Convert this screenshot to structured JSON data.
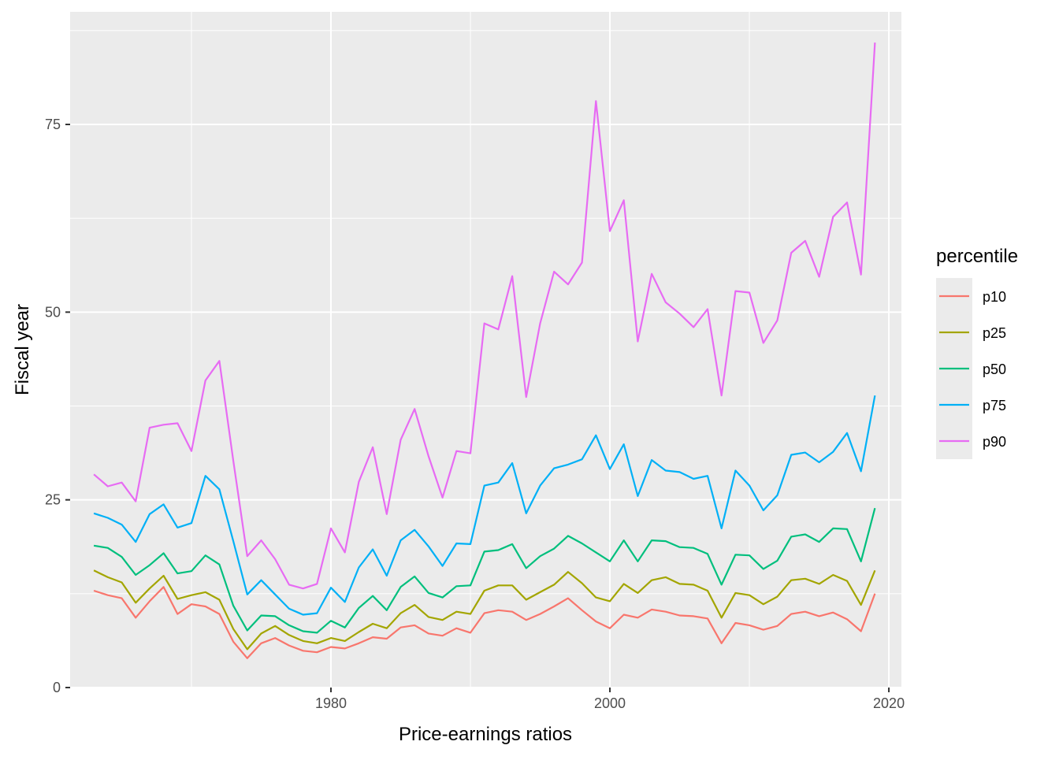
{
  "chart_data": {
    "type": "line",
    "xlabel": "Price-earnings ratios",
    "ylabel": "Fiscal year",
    "xlim": [
      1961.3,
      2020.9
    ],
    "ylim": [
      0,
      90
    ],
    "x_ticks": [
      1980,
      2000,
      2020
    ],
    "y_ticks": [
      0,
      25,
      50,
      75
    ],
    "x_tick_labels": [
      "1980",
      "2000",
      "2020"
    ],
    "y_tick_labels": [
      "0",
      "25",
      "50",
      "75"
    ],
    "grid": true,
    "legend": {
      "title": "percentile",
      "position": "right"
    },
    "x": [
      1963,
      1964,
      1965,
      1966,
      1967,
      1968,
      1969,
      1970,
      1971,
      1972,
      1973,
      1974,
      1975,
      1976,
      1977,
      1978,
      1979,
      1980,
      1981,
      1982,
      1983,
      1984,
      1985,
      1986,
      1987,
      1988,
      1989,
      1990,
      1991,
      1992,
      1993,
      1994,
      1995,
      1996,
      1997,
      1998,
      1999,
      2000,
      2001,
      2002,
      2003,
      2004,
      2005,
      2006,
      2007,
      2008,
      2009,
      2010,
      2011,
      2012,
      2013,
      2014,
      2015,
      2016,
      2017,
      2018,
      2019
    ],
    "series": [
      {
        "name": "p10",
        "color": "#F8766D",
        "values": [
          12.9,
          12.3,
          11.9,
          9.3,
          11.5,
          13.4,
          9.8,
          11.1,
          10.8,
          9.8,
          6.1,
          3.9,
          5.9,
          6.6,
          5.6,
          4.9,
          4.7,
          5.4,
          5.2,
          5.9,
          6.7,
          6.5,
          8.0,
          8.3,
          7.2,
          6.9,
          7.9,
          7.3,
          9.9,
          10.3,
          10.1,
          9.0,
          9.8,
          10.8,
          11.9,
          10.3,
          8.8,
          7.9,
          9.7,
          9.3,
          10.4,
          10.1,
          9.6,
          9.5,
          9.2,
          5.9,
          8.6,
          8.3,
          7.7,
          8.2,
          9.8,
          10.1,
          9.5,
          10.0,
          9.1,
          7.5,
          12.5
        ]
      },
      {
        "name": "p25",
        "color": "#A3A500",
        "values": [
          15.6,
          14.7,
          14.0,
          11.3,
          13.2,
          14.9,
          11.8,
          12.3,
          12.7,
          11.7,
          7.8,
          5.1,
          7.2,
          8.2,
          7.0,
          6.2,
          5.9,
          6.6,
          6.2,
          7.4,
          8.5,
          7.9,
          9.9,
          11.0,
          9.4,
          9.0,
          10.1,
          9.8,
          12.9,
          13.6,
          13.6,
          11.7,
          12.7,
          13.7,
          15.4,
          13.9,
          12.0,
          11.5,
          13.8,
          12.6,
          14.3,
          14.7,
          13.8,
          13.7,
          12.9,
          9.3,
          12.6,
          12.3,
          11.1,
          12.1,
          14.3,
          14.5,
          13.8,
          15.0,
          14.2,
          11.0,
          15.6
        ]
      },
      {
        "name": "p50",
        "color": "#00BF7D",
        "values": [
          18.9,
          18.6,
          17.4,
          15.0,
          16.3,
          17.9,
          15.2,
          15.5,
          17.6,
          16.4,
          10.9,
          7.6,
          9.6,
          9.5,
          8.3,
          7.5,
          7.3,
          8.9,
          8.0,
          10.6,
          12.2,
          10.3,
          13.4,
          14.8,
          12.6,
          12.0,
          13.5,
          13.6,
          18.1,
          18.3,
          19.1,
          15.9,
          17.5,
          18.5,
          20.2,
          19.2,
          18.0,
          16.8,
          19.6,
          16.8,
          19.6,
          19.5,
          18.7,
          18.6,
          17.8,
          13.7,
          17.7,
          17.6,
          15.8,
          16.9,
          20.1,
          20.4,
          19.4,
          21.2,
          21.1,
          16.8,
          23.9
        ]
      },
      {
        "name": "p75",
        "color": "#00B0F6",
        "values": [
          23.2,
          22.6,
          21.7,
          19.4,
          23.1,
          24.4,
          21.3,
          21.9,
          28.2,
          26.4,
          19.5,
          12.4,
          14.3,
          12.4,
          10.5,
          9.7,
          9.9,
          13.3,
          11.4,
          16.0,
          18.4,
          14.9,
          19.6,
          21.0,
          18.8,
          16.2,
          19.2,
          19.1,
          26.9,
          27.3,
          29.9,
          23.2,
          26.9,
          29.2,
          29.7,
          30.4,
          33.6,
          29.1,
          32.4,
          25.5,
          30.3,
          28.9,
          28.7,
          27.8,
          28.2,
          21.2,
          28.9,
          26.9,
          23.6,
          25.6,
          31.0,
          31.3,
          30.0,
          31.4,
          33.9,
          28.8,
          38.9
        ]
      },
      {
        "name": "p90",
        "color": "#E76BF3",
        "values": [
          28.4,
          26.8,
          27.3,
          24.8,
          34.6,
          35.0,
          35.2,
          31.5,
          40.9,
          43.5,
          30.2,
          17.5,
          19.6,
          17.1,
          13.7,
          13.2,
          13.8,
          21.2,
          18.0,
          27.4,
          32.0,
          23.1,
          33.0,
          37.1,
          30.8,
          25.3,
          31.5,
          31.2,
          48.5,
          47.7,
          54.8,
          38.7,
          48.5,
          55.4,
          53.7,
          56.6,
          78.1,
          60.8,
          64.9,
          46.1,
          55.1,
          51.3,
          49.8,
          48.0,
          50.4,
          38.9,
          52.8,
          52.6,
          45.9,
          48.9,
          57.9,
          59.5,
          54.7,
          62.7,
          64.6,
          55.0,
          85.9
        ]
      }
    ]
  }
}
